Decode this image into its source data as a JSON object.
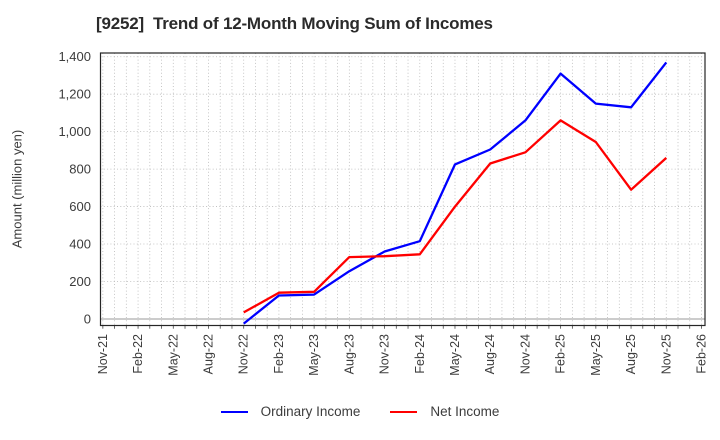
{
  "title": "[9252]  Trend of 12-Month Moving Sum of Incomes",
  "chart_data": {
    "type": "line",
    "title": "[9252]  Trend of 12-Month Moving Sum of Incomes",
    "xlabel": "",
    "ylabel": "Amount (million yen)",
    "x_axis": {
      "tick_labels": [
        "Nov-21",
        "Feb-22",
        "May-22",
        "Aug-22",
        "Nov-22",
        "Feb-23",
        "May-23",
        "Aug-23",
        "Nov-23",
        "Feb-24",
        "May-24",
        "Aug-24",
        "Nov-24",
        "Feb-25",
        "May-25",
        "Aug-25",
        "Nov-25",
        "Feb-26"
      ],
      "tick_interval_months": 3,
      "minor_gridline_interval_months": 1,
      "xlim_months": [
        -0.2,
        51.3
      ]
    },
    "y_axis": {
      "ticks": [
        0,
        200,
        400,
        600,
        800,
        1000,
        1200,
        1400
      ],
      "tick_labels": [
        "0",
        "200",
        "400",
        "600",
        "800",
        "1,000",
        "1,200",
        "1,400"
      ],
      "lim": [
        -35,
        1420
      ]
    },
    "grid": {
      "style": "dotted",
      "color": "#b8b8b8",
      "on": true
    },
    "legend_position": "bottom-center",
    "categories": [
      "Nov-22",
      "Feb-23",
      "May-23",
      "Aug-23",
      "Nov-23",
      "Feb-24",
      "May-24",
      "Aug-24",
      "Nov-24",
      "Feb-25",
      "May-25",
      "Aug-25",
      "Nov-25"
    ],
    "data_start_month_index": 12,
    "data_step_months": 3,
    "series": [
      {
        "name": "Ordinary Income",
        "color": "#0000ff",
        "values": [
          -25,
          125,
          130,
          255,
          360,
          415,
          825,
          905,
          1060,
          1310,
          1150,
          1130,
          1370
        ]
      },
      {
        "name": "Net Income",
        "color": "#ff0000",
        "values": [
          35,
          140,
          145,
          330,
          335,
          345,
          600,
          830,
          890,
          1060,
          945,
          690,
          860
        ]
      }
    ]
  }
}
